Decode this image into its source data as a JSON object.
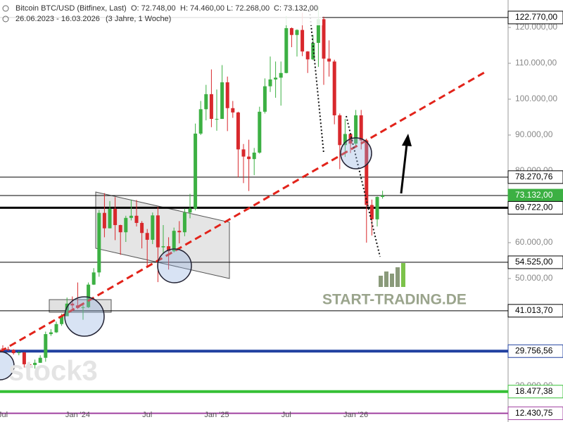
{
  "chart_data": {
    "type": "candlestick",
    "title": "Bitcoin BTC/USD (Bitfinex, Last)",
    "ohlc_labels": [
      "O: 72.748,00",
      "H: 74.460,00",
      "L: 72.268,00",
      "C: 73.132,00"
    ],
    "subtitle": "26.06.2023 - 16.03.2026",
    "period": "(3 Jahre, 1 Woche)",
    "watermarks": [
      "START-TRADING.DE",
      "stock3"
    ],
    "up_color": "#3cb043",
    "down_color": "#d8282c",
    "categories": [
      "Jul",
      null,
      null,
      null,
      null,
      null,
      null,
      null,
      null,
      null,
      null,
      null,
      null,
      null,
      "Jan '24",
      null,
      null,
      null,
      null,
      null,
      null,
      null,
      null,
      null,
      null,
      null,
      null,
      "Jul",
      null,
      null,
      null,
      null,
      null,
      null,
      null,
      null,
      null,
      null,
      null,
      null,
      "Jan '25",
      null,
      null,
      null,
      null,
      null,
      null,
      null,
      null,
      null,
      null,
      null,
      null,
      "Jul",
      null,
      null,
      null,
      null,
      null,
      null,
      null,
      null,
      null,
      null,
      null,
      null,
      "Jan '26",
      null,
      null,
      null,
      null,
      null
    ],
    "open": [
      30500,
      30300,
      30100,
      29200,
      29400,
      26100,
      25900,
      26500,
      27900,
      34500,
      35000,
      37300,
      39500,
      43000,
      42500,
      41800,
      42000,
      48300,
      51700,
      68300,
      64000,
      69400,
      64900,
      62900,
      66900,
      67500,
      65500,
      62700,
      60800,
      67600,
      58700,
      59000,
      57600,
      63300,
      62900,
      68400,
      69500,
      90400,
      97200,
      101400,
      94500,
      94500,
      104700,
      97500,
      96300,
      86000,
      84000,
      83300,
      85100,
      96500,
      103600,
      105500,
      106000,
      107300,
      119800,
      117900,
      119300,
      113300,
      111100,
      115700,
      122300,
      111300,
      110500,
      95500,
      87200,
      90300,
      87600,
      95500,
      88500,
      70500,
      66500,
      72748
    ],
    "high": [
      31400,
      31000,
      30300,
      29700,
      29500,
      26500,
      27400,
      28600,
      35200,
      35900,
      38000,
      40200,
      44700,
      45000,
      48900,
      42900,
      48900,
      52900,
      69100,
      73800,
      71600,
      72700,
      65000,
      67500,
      72000,
      71900,
      66000,
      63800,
      68400,
      70000,
      64900,
      61500,
      64200,
      66000,
      69500,
      73600,
      93200,
      99500,
      104000,
      108300,
      102700,
      109500,
      106300,
      99500,
      96500,
      87500,
      88700,
      86400,
      97900,
      105800,
      111900,
      110500,
      110500,
      123200,
      120000,
      119500,
      124100,
      113400,
      117900,
      126000,
      123000,
      116400,
      111000,
      96000,
      94500,
      90500,
      97000,
      97000,
      89000,
      72000,
      72900,
      74460
    ],
    "low": [
      29600,
      29800,
      28800,
      28600,
      25200,
      25300,
      24900,
      26500,
      26800,
      34000,
      34800,
      36800,
      39500,
      41600,
      41500,
      38500,
      41800,
      48200,
      50500,
      61500,
      64000,
      60700,
      56600,
      60200,
      66200,
      64500,
      58400,
      53500,
      59600,
      49000,
      57000,
      52500,
      57300,
      59800,
      61800,
      66800,
      69000,
      90000,
      94100,
      92200,
      91200,
      94500,
      91100,
      94800,
      78200,
      76600,
      74400,
      78800,
      84800,
      96000,
      102000,
      100400,
      98200,
      107200,
      114500,
      111900,
      112000,
      107300,
      110900,
      109000,
      104000,
      106300,
      93000,
      80500,
      83900,
      85000,
      87000,
      86000,
      60000,
      62000,
      64500,
      72268
    ],
    "close": [
      30300,
      30100,
      29200,
      29400,
      26100,
      25900,
      26500,
      27900,
      34500,
      35000,
      37300,
      39500,
      43000,
      42500,
      41800,
      42000,
      48300,
      51700,
      68300,
      64000,
      69400,
      64900,
      62900,
      66900,
      67500,
      65500,
      62700,
      60800,
      67600,
      58700,
      59000,
      57600,
      63300,
      62900,
      68400,
      69500,
      90400,
      97200,
      101400,
      94500,
      94500,
      104700,
      97500,
      96300,
      86000,
      84000,
      83300,
      85100,
      96500,
      103600,
      105500,
      106000,
      107300,
      119800,
      117900,
      119300,
      113300,
      111100,
      115700,
      122300,
      111300,
      110500,
      95500,
      87200,
      90300,
      87600,
      95500,
      88500,
      70500,
      66500,
      72748,
      73132
    ],
    "ylim": [
      10000,
      127650
    ],
    "yticks": [
      {
        "value": 20000,
        "label": "20.000,00"
      },
      {
        "value": 50000,
        "label": "50.000,00"
      },
      {
        "value": 60000,
        "label": "60.000,00"
      },
      {
        "value": 80000,
        "label": "80.000,00"
      },
      {
        "value": 90000,
        "label": "90.000,00"
      },
      {
        "value": 100000,
        "label": "100.000,00"
      },
      {
        "value": 110000,
        "label": "110.000,00"
      },
      {
        "value": 120000,
        "label": "120.000,00"
      }
    ],
    "levels": [
      {
        "value": 122770,
        "label": "122.770,00",
        "color": "#000000",
        "width": 1
      },
      {
        "value": 78270.76,
        "label": "78.270,76",
        "color": "#000000",
        "width": 1
      },
      {
        "value": 73132,
        "label": "73.132,00",
        "color": "#000000",
        "width": 1,
        "fill": "#3cb043"
      },
      {
        "value": 69722,
        "label": "69.722,00",
        "color": "#000000",
        "width": 3
      },
      {
        "value": 54525,
        "label": "54.525,00",
        "color": "#000000",
        "width": 1
      },
      {
        "value": 41013.7,
        "label": "41.013,70",
        "color": "#000000",
        "width": 1
      },
      {
        "value": 29756.56,
        "label": "29.756,56",
        "color": "#2040a0",
        "width": 4
      },
      {
        "value": 18477.38,
        "label": "18.477,38",
        "color": "#35c035",
        "width": 4
      },
      {
        "value": 12430.75,
        "label": "12.430,75",
        "color": "#a040a0",
        "width": 2
      }
    ]
  }
}
